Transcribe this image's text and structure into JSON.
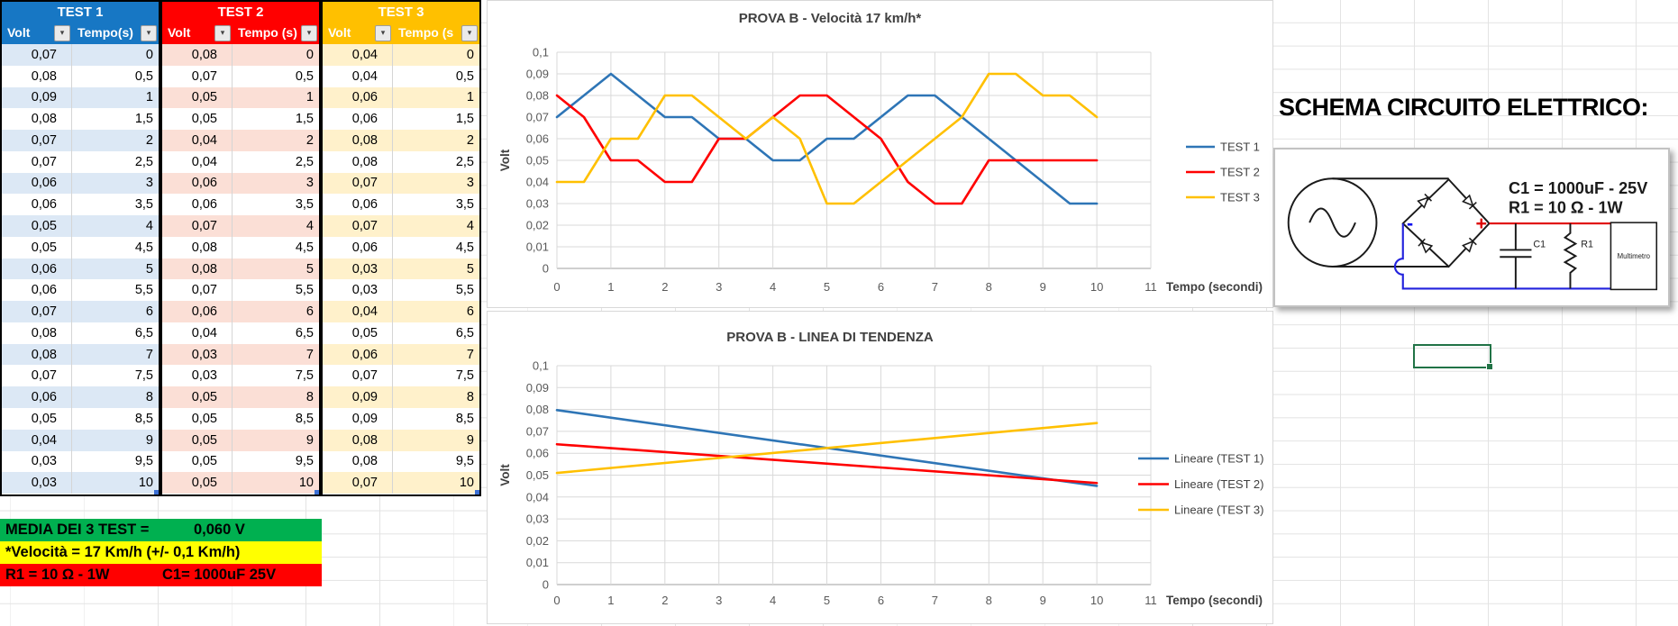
{
  "sheet": {
    "description": "Excel worksheet with three test tables, two charts and a circuit schematic"
  },
  "colors": {
    "test1_header": "#1777C4",
    "test1_band": "#DCE8F5",
    "test2_header": "#FF0000",
    "test2_band": "#FBDFD6",
    "test3_header": "#FFC000",
    "test3_band": "#FFF1CB",
    "series_blue": "#2E75B6",
    "series_red": "#FF0000",
    "series_yellow": "#FFC000",
    "summary_green": "#00B050",
    "summary_yellow": "#FFFF00",
    "summary_red": "#FF0000",
    "selection_green": "#217346"
  },
  "tables": [
    {
      "title": "TEST 1",
      "header_color": "#1777C4",
      "band_color": "#DCE8F5",
      "columns": [
        "Volt",
        "Tempo(s)"
      ],
      "volt": [
        "0,07",
        "0,08",
        "0,09",
        "0,08",
        "0,07",
        "0,07",
        "0,06",
        "0,06",
        "0,05",
        "0,05",
        "0,06",
        "0,06",
        "0,07",
        "0,08",
        "0,08",
        "0,07",
        "0,06",
        "0,05",
        "0,04",
        "0,03",
        "0,03"
      ],
      "tempo": [
        "0",
        "0,5",
        "1",
        "1,5",
        "2",
        "2,5",
        "3",
        "3,5",
        "4",
        "4,5",
        "5",
        "5,5",
        "6",
        "6,5",
        "7",
        "7,5",
        "8",
        "8,5",
        "9",
        "9,5",
        "10"
      ]
    },
    {
      "title": "TEST 2",
      "header_color": "#FF0000",
      "band_color": "#FBDFD6",
      "columns": [
        "Volt",
        "Tempo (s)"
      ],
      "volt": [
        "0,08",
        "0,07",
        "0,05",
        "0,05",
        "0,04",
        "0,04",
        "0,06",
        "0,06",
        "0,07",
        "0,08",
        "0,08",
        "0,07",
        "0,06",
        "0,04",
        "0,03",
        "0,03",
        "0,05",
        "0,05",
        "0,05",
        "0,05",
        "0,05"
      ],
      "tempo": [
        "0",
        "0,5",
        "1",
        "1,5",
        "2",
        "2,5",
        "3",
        "3,5",
        "4",
        "4,5",
        "5",
        "5,5",
        "6",
        "6,5",
        "7",
        "7,5",
        "8",
        "8,5",
        "9",
        "9,5",
        "10"
      ]
    },
    {
      "title": "TEST 3",
      "header_color": "#FFC000",
      "band_color": "#FFF1CB",
      "columns": [
        "Volt",
        "Tempo (s"
      ],
      "volt": [
        "0,04",
        "0,04",
        "0,06",
        "0,06",
        "0,08",
        "0,08",
        "0,07",
        "0,06",
        "0,07",
        "0,06",
        "0,03",
        "0,03",
        "0,04",
        "0,05",
        "0,06",
        "0,07",
        "0,09",
        "0,09",
        "0,08",
        "0,08",
        "0,07"
      ],
      "tempo": [
        "0",
        "0,5",
        "1",
        "1,5",
        "2",
        "2,5",
        "3",
        "3,5",
        "4",
        "4,5",
        "5",
        "5,5",
        "6",
        "6,5",
        "7",
        "7,5",
        "8",
        "8,5",
        "9",
        "9,5",
        "10"
      ]
    }
  ],
  "summary": {
    "media_label": "MEDIA DEI 3 TEST =",
    "media_value": "0,060  V",
    "media_bg": "#00B050",
    "velocita_text": "*Velocità = 17 Km/h  (+/- 0,1 Km/h)",
    "velocita_bg": "#FFFF00",
    "r1_text": "R1 = 10 Ω - 1W",
    "c1_text": "C1= 1000uF 25V",
    "rc_bg": "#FF0000"
  },
  "chart_data": [
    {
      "type": "line",
      "title": "PROVA B  - Velocità 17 km/h*",
      "xlabel": "Tempo (secondi)",
      "ylabel": "Volt",
      "xlim": [
        0,
        11
      ],
      "ylim": [
        0,
        0.1
      ],
      "grid": true,
      "legend_position": "right",
      "x": [
        0,
        0.5,
        1,
        1.5,
        2,
        2.5,
        3,
        3.5,
        4,
        4.5,
        5,
        5.5,
        6,
        6.5,
        7,
        7.5,
        8,
        8.5,
        9,
        9.5,
        10
      ],
      "xticks": [
        "0",
        "1",
        "2",
        "3",
        "4",
        "5",
        "6",
        "7",
        "8",
        "9",
        "10",
        "11"
      ],
      "yticks": [
        "0",
        "0,01",
        "0,02",
        "0,03",
        "0,04",
        "0,05",
        "0,06",
        "0,07",
        "0,08",
        "0,09",
        "0,1"
      ],
      "series": [
        {
          "name": "TEST 1",
          "color": "#2E75B6",
          "values": [
            0.07,
            0.08,
            0.09,
            0.08,
            0.07,
            0.07,
            0.06,
            0.06,
            0.05,
            0.05,
            0.06,
            0.06,
            0.07,
            0.08,
            0.08,
            0.07,
            0.06,
            0.05,
            0.04,
            0.03,
            0.03
          ]
        },
        {
          "name": "TEST 2",
          "color": "#FF0000",
          "values": [
            0.08,
            0.07,
            0.05,
            0.05,
            0.04,
            0.04,
            0.06,
            0.06,
            0.07,
            0.08,
            0.08,
            0.07,
            0.06,
            0.04,
            0.03,
            0.03,
            0.05,
            0.05,
            0.05,
            0.05,
            0.05
          ]
        },
        {
          "name": "TEST 3",
          "color": "#FFC000",
          "values": [
            0.04,
            0.04,
            0.06,
            0.06,
            0.08,
            0.08,
            0.07,
            0.06,
            0.07,
            0.06,
            0.03,
            0.03,
            0.04,
            0.05,
            0.06,
            0.07,
            0.09,
            0.09,
            0.08,
            0.08,
            0.07
          ]
        }
      ]
    },
    {
      "type": "line",
      "title": "PROVA B  -  LINEA DI TENDENZA",
      "xlabel": "Tempo (secondi)",
      "ylabel": "Volt",
      "xlim": [
        0,
        11
      ],
      "ylim": [
        0,
        0.1
      ],
      "grid": true,
      "legend_position": "right",
      "xticks": [
        "0",
        "1",
        "2",
        "3",
        "4",
        "5",
        "6",
        "7",
        "8",
        "9",
        "10",
        "11"
      ],
      "yticks": [
        "0",
        "0,01",
        "0,02",
        "0,03",
        "0,04",
        "0,05",
        "0,06",
        "0,07",
        "0,08",
        "0,09",
        "0,1"
      ],
      "series": [
        {
          "name": "Lineare (TEST 1)",
          "color": "#2E75B6",
          "x": [
            0,
            10
          ],
          "values": [
            0.0797,
            0.0451
          ]
        },
        {
          "name": "Lineare (TEST 2)",
          "color": "#FF0000",
          "x": [
            0,
            10
          ],
          "values": [
            0.0641,
            0.0464
          ]
        },
        {
          "name": "Lineare (TEST 3)",
          "color": "#FFC000",
          "x": [
            0,
            10
          ],
          "values": [
            0.051,
            0.0738
          ]
        }
      ]
    }
  ],
  "schematic": {
    "title": "SCHEMA CIRCUITO ELETTRICO:",
    "line1": "C1 = 1000uF - 25V",
    "line2": "R1 = 10 Ω - 1W",
    "minus": "-",
    "plus": "+",
    "c1_label": "C1",
    "r1_label": "R1",
    "meter_label": "Multimetro"
  }
}
